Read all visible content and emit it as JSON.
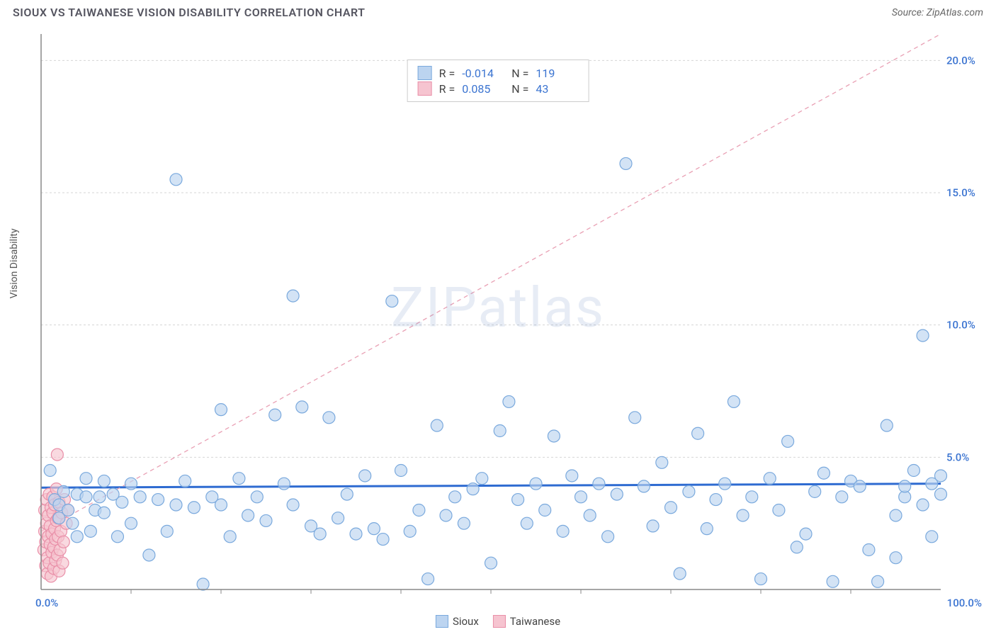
{
  "title": "SIOUX VS TAIWANESE VISION DISABILITY CORRELATION CHART",
  "source": "Source: ZipAtlas.com",
  "ylabel": "Vision Disability",
  "watermark": "ZIPatlas",
  "chart": {
    "type": "scatter",
    "background_color": "#ffffff",
    "plot_border_color": "#888888",
    "grid_color": "#d5d5d5",
    "grid_dash": "3,3",
    "xlim": [
      0,
      100
    ],
    "ylim": [
      0,
      21
    ],
    "y_ticks": [
      5,
      10,
      15,
      20
    ],
    "y_tick_labels": [
      "5.0%",
      "10.0%",
      "15.0%",
      "20.0%"
    ],
    "x_minor_ticks": [
      10,
      20,
      30,
      40,
      50,
      60,
      70,
      80,
      90
    ],
    "x_start_label": "0.0%",
    "x_end_label": "100.0%",
    "marker_radius": 8.5,
    "marker_stroke_width": 1.2,
    "series": [
      {
        "name": "Sioux",
        "fill": "#bcd4f0",
        "stroke": "#7aa9dd",
        "fill_opacity": 0.65,
        "R": "-0.014",
        "N": "119",
        "trend": {
          "y_at_x0": 3.85,
          "y_at_x100": 4.0,
          "stroke": "#2e6bd1",
          "width": 3,
          "dash": "none"
        },
        "points": [
          [
            1,
            4.5
          ],
          [
            1.5,
            3.4
          ],
          [
            2,
            3.2
          ],
          [
            2,
            2.7
          ],
          [
            2.5,
            3.7
          ],
          [
            3,
            3.0
          ],
          [
            3.5,
            2.5
          ],
          [
            4,
            3.6
          ],
          [
            4,
            2.0
          ],
          [
            5,
            3.5
          ],
          [
            5,
            4.2
          ],
          [
            5.5,
            2.2
          ],
          [
            6,
            3.0
          ],
          [
            6.5,
            3.5
          ],
          [
            7,
            2.9
          ],
          [
            7,
            4.1
          ],
          [
            8,
            3.6
          ],
          [
            8.5,
            2.0
          ],
          [
            9,
            3.3
          ],
          [
            10,
            4.0
          ],
          [
            10,
            2.5
          ],
          [
            11,
            3.5
          ],
          [
            12,
            1.3
          ],
          [
            13,
            3.4
          ],
          [
            14,
            2.2
          ],
          [
            15,
            15.5
          ],
          [
            15,
            3.2
          ],
          [
            16,
            4.1
          ],
          [
            17,
            3.1
          ],
          [
            18,
            0.2
          ],
          [
            19,
            3.5
          ],
          [
            20,
            6.8
          ],
          [
            20,
            3.2
          ],
          [
            21,
            2.0
          ],
          [
            22,
            4.2
          ],
          [
            23,
            2.8
          ],
          [
            24,
            3.5
          ],
          [
            25,
            2.6
          ],
          [
            26,
            6.6
          ],
          [
            27,
            4.0
          ],
          [
            28,
            11.1
          ],
          [
            28,
            3.2
          ],
          [
            29,
            6.9
          ],
          [
            30,
            2.4
          ],
          [
            31,
            2.1
          ],
          [
            32,
            6.5
          ],
          [
            33,
            2.7
          ],
          [
            34,
            3.6
          ],
          [
            35,
            2.1
          ],
          [
            36,
            4.3
          ],
          [
            37,
            2.3
          ],
          [
            38,
            1.9
          ],
          [
            39,
            10.9
          ],
          [
            40,
            4.5
          ],
          [
            41,
            2.2
          ],
          [
            42,
            3.0
          ],
          [
            43,
            0.4
          ],
          [
            44,
            6.2
          ],
          [
            45,
            2.8
          ],
          [
            46,
            3.5
          ],
          [
            47,
            2.5
          ],
          [
            48,
            3.8
          ],
          [
            49,
            4.2
          ],
          [
            50,
            1.0
          ],
          [
            51,
            6.0
          ],
          [
            52,
            7.1
          ],
          [
            53,
            3.4
          ],
          [
            54,
            2.5
          ],
          [
            55,
            4.0
          ],
          [
            56,
            3.0
          ],
          [
            57,
            5.8
          ],
          [
            58,
            2.2
          ],
          [
            59,
            4.3
          ],
          [
            60,
            3.5
          ],
          [
            61,
            2.8
          ],
          [
            62,
            4.0
          ],
          [
            63,
            2.0
          ],
          [
            64,
            3.6
          ],
          [
            65,
            16.1
          ],
          [
            66,
            6.5
          ],
          [
            67,
            3.9
          ],
          [
            68,
            2.4
          ],
          [
            69,
            4.8
          ],
          [
            70,
            3.1
          ],
          [
            71,
            0.6
          ],
          [
            72,
            3.7
          ],
          [
            73,
            5.9
          ],
          [
            74,
            2.3
          ],
          [
            75,
            3.4
          ],
          [
            76,
            4.0
          ],
          [
            77,
            7.1
          ],
          [
            78,
            2.8
          ],
          [
            79,
            3.5
          ],
          [
            80,
            0.4
          ],
          [
            81,
            4.2
          ],
          [
            82,
            3.0
          ],
          [
            83,
            5.6
          ],
          [
            84,
            1.6
          ],
          [
            85,
            2.1
          ],
          [
            86,
            3.7
          ],
          [
            87,
            4.4
          ],
          [
            88,
            0.3
          ],
          [
            89,
            3.5
          ],
          [
            90,
            4.1
          ],
          [
            91,
            3.9
          ],
          [
            92,
            1.5
          ],
          [
            93,
            0.3
          ],
          [
            94,
            6.2
          ],
          [
            95,
            2.8
          ],
          [
            95,
            1.2
          ],
          [
            96,
            3.5
          ],
          [
            96,
            3.9
          ],
          [
            97,
            4.5
          ],
          [
            98,
            9.6
          ],
          [
            99,
            4.0
          ],
          [
            99,
            2.0
          ],
          [
            100,
            3.6
          ],
          [
            100,
            4.3
          ],
          [
            98,
            3.2
          ]
        ]
      },
      {
        "name": "Taiwanese",
        "fill": "#f6c4d0",
        "stroke": "#e98fa8",
        "fill_opacity": 0.65,
        "R": "0.085",
        "N": "43",
        "trend": {
          "y_at_x0": 2.2,
          "y_at_x100": 21.0,
          "stroke": "#e9a0b4",
          "width": 1.3,
          "dash": "6,5"
        },
        "points": [
          [
            0.3,
            1.5
          ],
          [
            0.4,
            2.2
          ],
          [
            0.4,
            3.0
          ],
          [
            0.5,
            0.9
          ],
          [
            0.5,
            1.8
          ],
          [
            0.6,
            2.5
          ],
          [
            0.6,
            3.4
          ],
          [
            0.7,
            0.6
          ],
          [
            0.7,
            1.2
          ],
          [
            0.8,
            2.0
          ],
          [
            0.8,
            2.8
          ],
          [
            0.9,
            3.6
          ],
          [
            0.9,
            1.0
          ],
          [
            1.0,
            1.7
          ],
          [
            1.0,
            2.4
          ],
          [
            1.1,
            3.1
          ],
          [
            1.1,
            0.5
          ],
          [
            1.2,
            1.4
          ],
          [
            1.2,
            2.1
          ],
          [
            1.3,
            2.9
          ],
          [
            1.3,
            3.5
          ],
          [
            1.4,
            0.8
          ],
          [
            1.4,
            1.6
          ],
          [
            1.5,
            2.3
          ],
          [
            1.5,
            3.2
          ],
          [
            1.6,
            1.1
          ],
          [
            1.6,
            1.9
          ],
          [
            1.7,
            2.6
          ],
          [
            1.7,
            3.8
          ],
          [
            1.8,
            5.1
          ],
          [
            1.8,
            1.3
          ],
          [
            1.9,
            2.0
          ],
          [
            1.9,
            2.7
          ],
          [
            2.0,
            3.3
          ],
          [
            2.0,
            0.7
          ],
          [
            2.1,
            1.5
          ],
          [
            2.2,
            2.2
          ],
          [
            2.3,
            2.9
          ],
          [
            2.4,
            1.0
          ],
          [
            2.5,
            1.8
          ],
          [
            2.6,
            3.4
          ],
          [
            2.8,
            2.5
          ],
          [
            3.0,
            3.0
          ]
        ]
      }
    ],
    "legend": {
      "items": [
        {
          "label": "Sioux",
          "fill": "#bcd4f0",
          "stroke": "#7aa9dd"
        },
        {
          "label": "Taiwanese",
          "fill": "#f6c4d0",
          "stroke": "#e98fa8"
        }
      ]
    }
  }
}
